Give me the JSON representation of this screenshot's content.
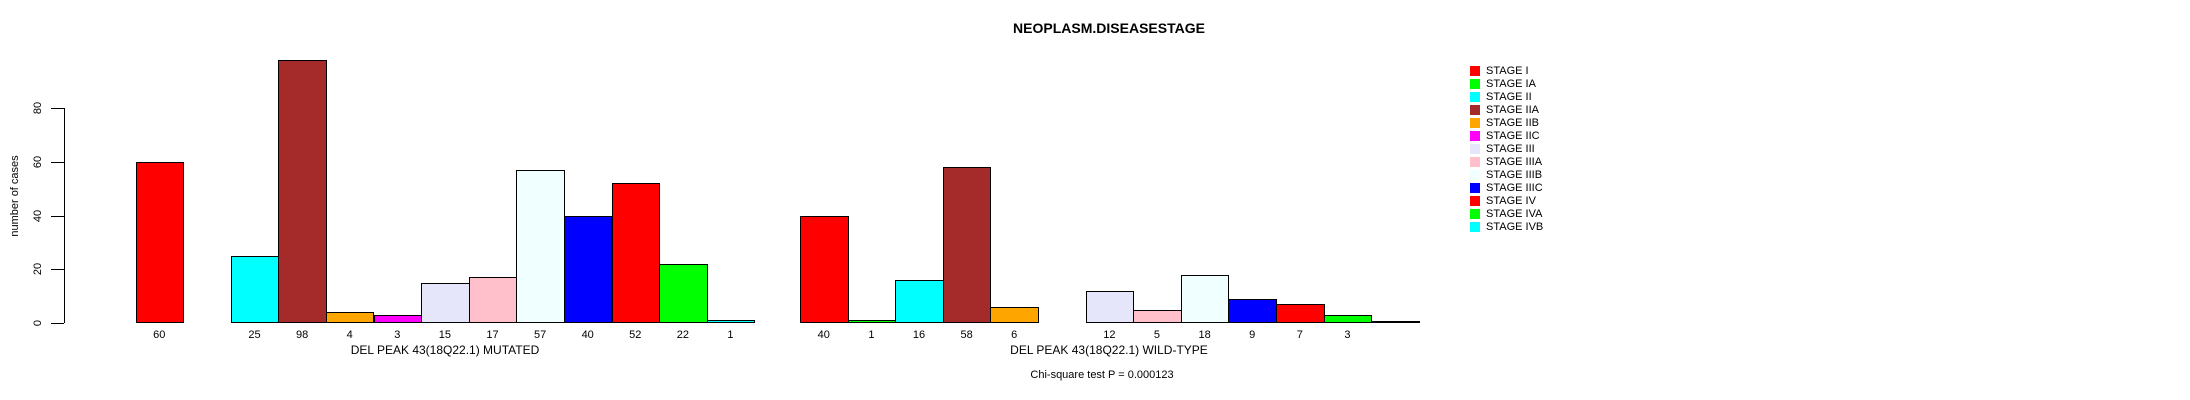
{
  "title": "NEOPLASM.DISEASESTAGE",
  "y_axis": {
    "label": "number of cases",
    "ticks": [
      0,
      20,
      40,
      60,
      80
    ]
  },
  "legend": {
    "items": [
      {
        "label": "STAGE I",
        "color": "#FF0000"
      },
      {
        "label": "STAGE IA",
        "color": "#00FF00"
      },
      {
        "label": "STAGE II",
        "color": "#00FFFF"
      },
      {
        "label": "STAGE IIA",
        "color": "#A52A2A"
      },
      {
        "label": "STAGE IIB",
        "color": "#FFA500"
      },
      {
        "label": "STAGE IIC",
        "color": "#FF00FF"
      },
      {
        "label": "STAGE III",
        "color": "#E6E6FA"
      },
      {
        "label": "STAGE IIIA",
        "color": "#FFC0CB"
      },
      {
        "label": "STAGE IIIB",
        "color": "#F0FFFF"
      },
      {
        "label": "STAGE IIIC",
        "color": "#0000FF"
      },
      {
        "label": "STAGE IV",
        "color": "#FF0000"
      },
      {
        "label": "STAGE IVA",
        "color": "#00FF00"
      },
      {
        "label": "STAGE IVB",
        "color": "#00FFFF"
      }
    ]
  },
  "footer": "Chi-square test P = 0.000123",
  "chart_data": {
    "type": "bar",
    "title": "NEOPLASM.DISEASESTAGE",
    "ylabel": "number of cases",
    "xlabel": "",
    "ylim": [
      0,
      100
    ],
    "yticks": [
      0,
      20,
      40,
      60,
      80
    ],
    "grid": false,
    "legend_position": "right",
    "categories": [
      "STAGE I",
      "STAGE IA",
      "STAGE II",
      "STAGE IIA",
      "STAGE IIB",
      "STAGE IIC",
      "STAGE III",
      "STAGE IIIA",
      "STAGE IIIB",
      "STAGE IIIC",
      "STAGE IV",
      "STAGE IVA",
      "STAGE IVB"
    ],
    "series": [
      {
        "name": "DEL PEAK 43(18Q22.1) MUTATED",
        "values": [
          60,
          null,
          25,
          98,
          4,
          3,
          15,
          17,
          57,
          40,
          52,
          22,
          1
        ]
      },
      {
        "name": "DEL PEAK 43(18Q22.1) WILD-TYPE",
        "values": [
          40,
          1,
          16,
          58,
          6,
          null,
          12,
          5,
          18,
          9,
          7,
          3,
          0
        ]
      }
    ],
    "colors": [
      "#FF0000",
      "#00FF00",
      "#00FFFF",
      "#A52A2A",
      "#FFA500",
      "#FF00FF",
      "#E6E6FA",
      "#FFC0CB",
      "#F0FFFF",
      "#0000FF",
      "#FF0000",
      "#00FF00",
      "#00FFFF"
    ],
    "annotation": "Chi-square test P = 0.000123"
  }
}
